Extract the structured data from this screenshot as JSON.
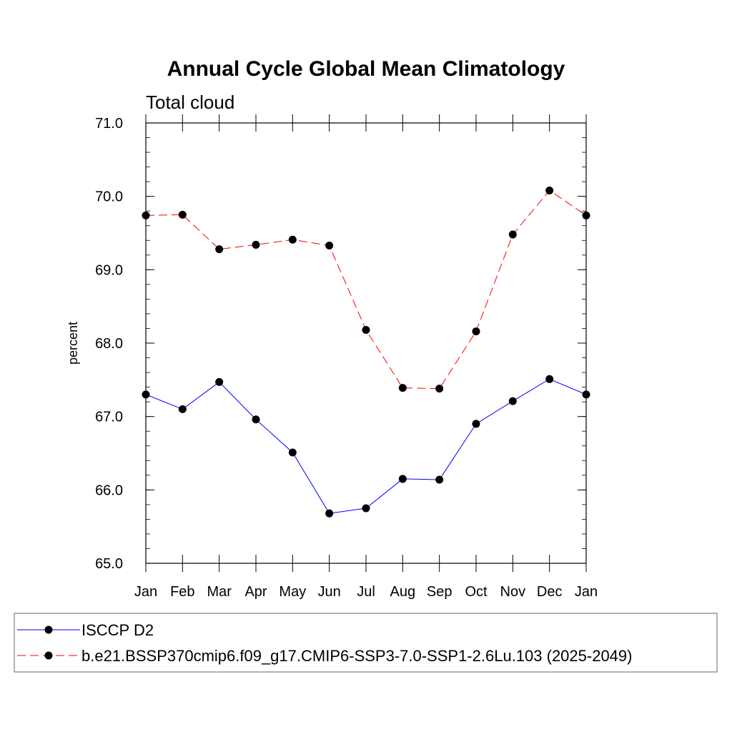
{
  "chart_data": {
    "type": "line",
    "title": "Annual Cycle Global Mean Climatology",
    "subtitle": "Total cloud",
    "xlabel": "",
    "ylabel": "percent",
    "categories": [
      "Jan",
      "Feb",
      "Mar",
      "Apr",
      "May",
      "Jun",
      "Jul",
      "Aug",
      "Sep",
      "Oct",
      "Nov",
      "Dec",
      "Jan"
    ],
    "ylim": [
      65.0,
      71.0
    ],
    "yticks": [
      "65.0",
      "66.0",
      "67.0",
      "68.0",
      "69.0",
      "70.0",
      "71.0"
    ],
    "series": [
      {
        "name": "ISCCP D2",
        "color": "#0000ff",
        "dash": "solid",
        "marker": "circle",
        "values": [
          67.3,
          67.1,
          67.47,
          66.96,
          66.51,
          65.68,
          65.75,
          66.15,
          66.14,
          66.9,
          67.21,
          67.51,
          67.3
        ]
      },
      {
        "name": "b.e21.BSSP370cmip6.f09_g17.CMIP6-SSP3-7.0-SSP1-2.6Lu.103 (2025-2049)",
        "color": "#ff0000",
        "dash": "dashed",
        "marker": "circle",
        "values": [
          69.74,
          69.75,
          69.28,
          69.34,
          69.41,
          69.33,
          68.18,
          67.39,
          67.38,
          68.16,
          69.48,
          70.08,
          69.74
        ]
      }
    ],
    "legend_position": "bottom"
  }
}
